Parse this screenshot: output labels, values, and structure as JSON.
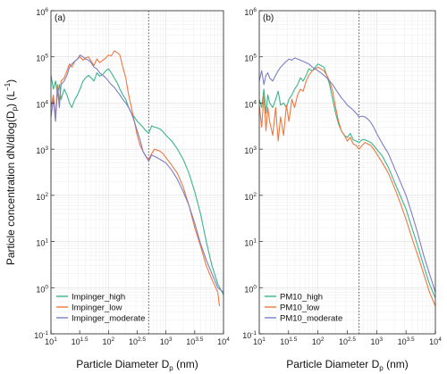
{
  "figure": {
    "ylabel": "Particle concentration dN/dlog(D",
    "ylabel_sub": "p",
    "ylabel_unit": ") (L",
    "ylabel_sup": "−1",
    "ylabel_close": ")"
  },
  "chart_data": [
    {
      "type": "line",
      "panel_label": "(a)",
      "xlabel": "Particle Diameter D",
      "xlabel_sub": "p",
      "xlabel_unit": " (nm)",
      "xscale": "log",
      "yscale": "log",
      "xlim": [
        10,
        10000
      ],
      "ylim": [
        0.1,
        1000000
      ],
      "x_ticks": [
        {
          "value": 10,
          "base": "10",
          "exp": "1"
        },
        {
          "value": 31.6,
          "base": "10",
          "exp": "1.5"
        },
        {
          "value": 100,
          "base": "10",
          "exp": "2"
        },
        {
          "value": 316,
          "base": "10",
          "exp": "2.5"
        },
        {
          "value": 1000,
          "base": "10",
          "exp": "3"
        },
        {
          "value": 3162,
          "base": "10",
          "exp": "3.5"
        },
        {
          "value": 10000,
          "base": "10",
          "exp": "4"
        }
      ],
      "y_ticks": [
        {
          "value": 0.1,
          "base": "10",
          "exp": "-1"
        },
        {
          "value": 1,
          "base": "10",
          "exp": "0"
        },
        {
          "value": 10,
          "base": "10",
          "exp": "1"
        },
        {
          "value": 100,
          "base": "10",
          "exp": "2"
        },
        {
          "value": 1000,
          "base": "10",
          "exp": "3"
        },
        {
          "value": 10000,
          "base": "10",
          "exp": "4"
        },
        {
          "value": 100000,
          "base": "10",
          "exp": "5"
        },
        {
          "value": 1000000,
          "base": "10",
          "exp": "6"
        }
      ],
      "vline_x": 500,
      "grid": true,
      "legend_position": "bottom-left",
      "series": [
        {
          "name": "Impinger_high",
          "color": "#3bb58a",
          "x": [
            10,
            11,
            12,
            13,
            14,
            15,
            17,
            19,
            21,
            23,
            26,
            29,
            32,
            36,
            40,
            45,
            50,
            56,
            63,
            70,
            80,
            90,
            100,
            112,
            126,
            141,
            158,
            178,
            200,
            224,
            251,
            282,
            316,
            355,
            398,
            447,
            501,
            562,
            631,
            708,
            794,
            891,
            1000,
            1259,
            1585,
            1995,
            2512,
            3162,
            3981,
            5012,
            6310,
            7943,
            10000
          ],
          "y": [
            40000,
            20000,
            30000,
            15000,
            25000,
            12000,
            20000,
            15000,
            10000,
            8000,
            12000,
            15000,
            20000,
            30000,
            35000,
            40000,
            35000,
            30000,
            45000,
            38000,
            42000,
            50000,
            55000,
            45000,
            35000,
            28000,
            20000,
            15000,
            12000,
            8000,
            6000,
            5000,
            4000,
            3500,
            3000,
            2500,
            2200,
            3200,
            3000,
            2900,
            2700,
            2400,
            2000,
            1500,
            1000,
            600,
            300,
            120,
            40,
            10,
            3,
            1.2,
            0.7
          ]
        },
        {
          "name": "Impinger_low",
          "color": "#f07840",
          "x": [
            10,
            11,
            12,
            13,
            14,
            15,
            17,
            19,
            21,
            23,
            26,
            29,
            32,
            36,
            40,
            45,
            50,
            56,
            63,
            70,
            80,
            90,
            100,
            112,
            126,
            141,
            158,
            178,
            200,
            224,
            251,
            282,
            316,
            355,
            398,
            447,
            501,
            562,
            631,
            708,
            794,
            891,
            1000,
            1259,
            1585,
            1995,
            2512,
            3162,
            3981,
            5012,
            6310,
            7943,
            8500
          ],
          "y": [
            8000,
            15000,
            5000,
            25000,
            10000,
            30000,
            35000,
            50000,
            70000,
            60000,
            80000,
            90000,
            100000,
            85000,
            95000,
            100000,
            80000,
            65000,
            90000,
            75000,
            85000,
            95000,
            110000,
            105000,
            135000,
            125000,
            110000,
            60000,
            35000,
            15000,
            8000,
            4000,
            2000,
            1200,
            900,
            700,
            600,
            800,
            1000,
            950,
            900,
            800,
            650,
            450,
            300,
            150,
            60,
            20,
            8,
            3,
            1.5,
            0.8,
            0.4
          ]
        },
        {
          "name": "Impinger_moderate",
          "color": "#7b7fc4",
          "x": [
            10,
            11,
            12,
            13,
            14,
            15,
            17,
            19,
            21,
            23,
            26,
            29,
            32,
            36,
            40,
            45,
            50,
            56,
            63,
            70,
            80,
            90,
            100,
            112,
            126,
            141,
            158,
            178,
            200,
            224,
            251,
            282,
            316,
            355,
            398,
            447,
            501,
            562,
            631,
            708,
            794,
            891,
            1000,
            1259,
            1585,
            1995,
            2512,
            3162,
            3981,
            5012,
            6310,
            7943,
            10000
          ],
          "y": [
            5000,
            12000,
            4000,
            20000,
            8000,
            25000,
            30000,
            40000,
            60000,
            70000,
            80000,
            90000,
            110000,
            100000,
            90000,
            85000,
            75000,
            60000,
            55000,
            45000,
            40000,
            35000,
            30000,
            25000,
            22000,
            18000,
            15000,
            12000,
            10000,
            8000,
            6000,
            4000,
            2500,
            1600,
            900,
            700,
            550,
            750,
            700,
            650,
            600,
            550,
            500,
            350,
            220,
            120,
            60,
            25,
            9,
            4,
            2,
            1,
            0.8
          ]
        }
      ]
    },
    {
      "type": "line",
      "panel_label": "(b)",
      "xlabel": "Particle Diameter D",
      "xlabel_sub": "p",
      "xlabel_unit": " (nm)",
      "xscale": "log",
      "yscale": "log",
      "xlim": [
        10,
        10000
      ],
      "ylim": [
        0.1,
        1000000
      ],
      "x_ticks": [
        {
          "value": 10,
          "base": "10",
          "exp": "1"
        },
        {
          "value": 31.6,
          "base": "10",
          "exp": "1.5"
        },
        {
          "value": 100,
          "base": "10",
          "exp": "2"
        },
        {
          "value": 316,
          "base": "10",
          "exp": "2.5"
        },
        {
          "value": 1000,
          "base": "10",
          "exp": "3"
        },
        {
          "value": 3162,
          "base": "10",
          "exp": "3.5"
        },
        {
          "value": 10000,
          "base": "10",
          "exp": "4"
        }
      ],
      "y_ticks": [
        {
          "value": 0.1,
          "base": "10",
          "exp": "-1"
        },
        {
          "value": 1,
          "base": "10",
          "exp": "0"
        },
        {
          "value": 10,
          "base": "10",
          "exp": "1"
        },
        {
          "value": 100,
          "base": "10",
          "exp": "2"
        },
        {
          "value": 1000,
          "base": "10",
          "exp": "3"
        },
        {
          "value": 10000,
          "base": "10",
          "exp": "4"
        },
        {
          "value": 100000,
          "base": "10",
          "exp": "5"
        },
        {
          "value": 1000000,
          "base": "10",
          "exp": "6"
        }
      ],
      "vline_x": 500,
      "grid": true,
      "legend_position": "bottom-left",
      "series": [
        {
          "name": "PM10_high",
          "color": "#3bb58a",
          "x": [
            10,
            11,
            12,
            13,
            14,
            15,
            17,
            19,
            21,
            23,
            26,
            29,
            32,
            36,
            40,
            45,
            50,
            56,
            63,
            70,
            80,
            90,
            100,
            112,
            126,
            141,
            158,
            178,
            200,
            224,
            251,
            282,
            316,
            355,
            398,
            447,
            501,
            562,
            631,
            708,
            794,
            891,
            1000,
            1259,
            1585,
            1995,
            2512,
            3162,
            3981,
            5012,
            6310,
            7943,
            10000
          ],
          "y": [
            12000,
            8000,
            20000,
            6000,
            15000,
            10000,
            8000,
            12000,
            18000,
            9000,
            10000,
            8000,
            12000,
            15000,
            20000,
            25000,
            35000,
            30000,
            40000,
            55000,
            50000,
            60000,
            70000,
            65000,
            60000,
            40000,
            25000,
            12000,
            6000,
            3500,
            2500,
            2000,
            1800,
            2200,
            1600,
            1500,
            1400,
            1600,
            1600,
            1500,
            1400,
            1200,
            1000,
            700,
            400,
            200,
            100,
            50,
            20,
            8,
            3,
            1.2,
            0.6
          ]
        },
        {
          "name": "PM10_low",
          "color": "#f07840",
          "x": [
            10,
            11,
            12,
            13,
            14,
            15,
            17,
            19,
            21,
            23,
            26,
            29,
            32,
            36,
            40,
            45,
            50,
            56,
            63,
            70,
            80,
            90,
            100,
            112,
            126,
            141,
            158,
            178,
            200,
            224,
            251,
            282,
            316,
            355,
            398,
            447,
            501,
            562,
            631,
            708,
            794,
            891,
            1000,
            1259,
            1585,
            1995,
            2512,
            3162,
            3981,
            5012,
            6310,
            7943,
            10000
          ],
          "y": [
            9000,
            3000,
            15000,
            2500,
            8000,
            4000,
            2000,
            8000,
            1500,
            5000,
            2000,
            9000,
            4000,
            12000,
            8000,
            15000,
            20000,
            18000,
            30000,
            40000,
            50000,
            55000,
            60000,
            55000,
            50000,
            40000,
            30000,
            18000,
            8000,
            4000,
            2500,
            2000,
            1500,
            1800,
            1300,
            1200,
            1000,
            1200,
            1400,
            1300,
            1200,
            1000,
            800,
            500,
            300,
            150,
            70,
            30,
            12,
            5,
            2,
            0.8,
            0.4
          ]
        },
        {
          "name": "PM10_moderate",
          "color": "#7b7fc4",
          "x": [
            10,
            11,
            12,
            13,
            14,
            15,
            17,
            19,
            21,
            23,
            26,
            29,
            32,
            36,
            40,
            45,
            50,
            56,
            63,
            70,
            80,
            90,
            100,
            112,
            126,
            141,
            158,
            178,
            200,
            224,
            251,
            282,
            316,
            355,
            398,
            447,
            501,
            562,
            631,
            708,
            794,
            891,
            1000,
            1259,
            1585,
            1995,
            2512,
            3162,
            3981,
            5012,
            6310,
            7943,
            10000
          ],
          "y": [
            30000,
            50000,
            25000,
            40000,
            45000,
            35000,
            30000,
            40000,
            50000,
            60000,
            70000,
            80000,
            90000,
            85000,
            95000,
            90000,
            85000,
            80000,
            75000,
            70000,
            60000,
            55000,
            50000,
            45000,
            40000,
            35000,
            30000,
            25000,
            20000,
            16000,
            13000,
            11000,
            9000,
            8000,
            7000,
            6000,
            5000,
            5200,
            5000,
            4500,
            3800,
            3000,
            2200,
            1300,
            800,
            400,
            200,
            100,
            40,
            15,
            5,
            2,
            0.8
          ]
        }
      ]
    }
  ]
}
